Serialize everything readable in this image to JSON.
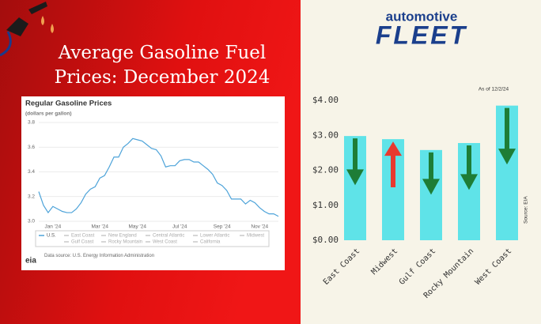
{
  "header": {
    "title_lines": [
      "Average Gasoline Fuel",
      "Prices: December 2024"
    ]
  },
  "logo": {
    "brand_top": "automotive",
    "brand_main": "FLEET"
  },
  "chart_data": [
    {
      "type": "line",
      "title": "Regular Gasoline Prices",
      "subtitle": "(dollars per gallon)",
      "categories": [
        null,
        null,
        null,
        "Jan '24",
        null,
        null,
        null,
        null,
        null,
        null,
        null,
        null,
        null,
        "Mar '24",
        null,
        null,
        null,
        null,
        null,
        null,
        null,
        "May '24",
        null,
        null,
        null,
        null,
        null,
        null,
        null,
        null,
        "Jul '24",
        null,
        null,
        null,
        null,
        null,
        null,
        null,
        null,
        "Sep '24",
        null,
        null,
        null,
        null,
        null,
        null,
        null,
        "Nov '24",
        null,
        null,
        null,
        null
      ],
      "series": [
        {
          "name": "U.S.",
          "color": "#4da3d9",
          "values": [
            3.24,
            3.13,
            3.07,
            3.12,
            3.1,
            3.08,
            3.07,
            3.07,
            3.1,
            3.15,
            3.22,
            3.26,
            3.28,
            3.35,
            3.37,
            3.44,
            3.52,
            3.52,
            3.6,
            3.63,
            3.67,
            3.66,
            3.65,
            3.62,
            3.59,
            3.58,
            3.53,
            3.44,
            3.45,
            3.45,
            3.49,
            3.5,
            3.5,
            3.48,
            3.48,
            3.45,
            3.42,
            3.38,
            3.31,
            3.29,
            3.25,
            3.18,
            3.18,
            3.18,
            3.14,
            3.17,
            3.15,
            3.11,
            3.08,
            3.06,
            3.06,
            3.04
          ]
        }
      ],
      "legend_items": [
        "East Coast",
        "New England",
        "Central Atlantic",
        "Lower Atlantic",
        "Midwest",
        "Gulf Coast",
        "Rocky Mountain",
        "West Coast",
        "California"
      ],
      "ylim": [
        3,
        3.8
      ],
      "yticks": [
        {
          "value": 3,
          "label": "3.0"
        },
        3.2,
        3.4,
        3.6,
        3.8
      ],
      "grid": true,
      "source": "Data source: U.S. Energy Information Administration",
      "source_logo": "eia"
    },
    {
      "type": "bar",
      "note": "As of 12/2/24",
      "categories": [
        "East Coast",
        "Midwest",
        "Gulf Coast",
        "Rocky Mountain",
        "West Coast"
      ],
      "values": [
        2.98,
        2.89,
        2.58,
        2.78,
        3.85
      ],
      "color": "#5fe3e8",
      "arrows": [
        "down",
        "up",
        "down",
        "down",
        "down"
      ],
      "arrow_colors": {
        "down": "#1e7d36",
        "up": "#e8392f"
      },
      "ylim": [
        0,
        4
      ],
      "yticks": [
        {
          "value": 0,
          "label": "$0.00"
        },
        {
          "value": 1,
          "label": "$1.00"
        },
        {
          "value": 2,
          "label": "$2.00"
        },
        {
          "value": 3,
          "label": "$3.00"
        },
        {
          "value": 4,
          "label": "$4.00"
        }
      ],
      "grid": false,
      "source": "Source: EIA"
    }
  ]
}
